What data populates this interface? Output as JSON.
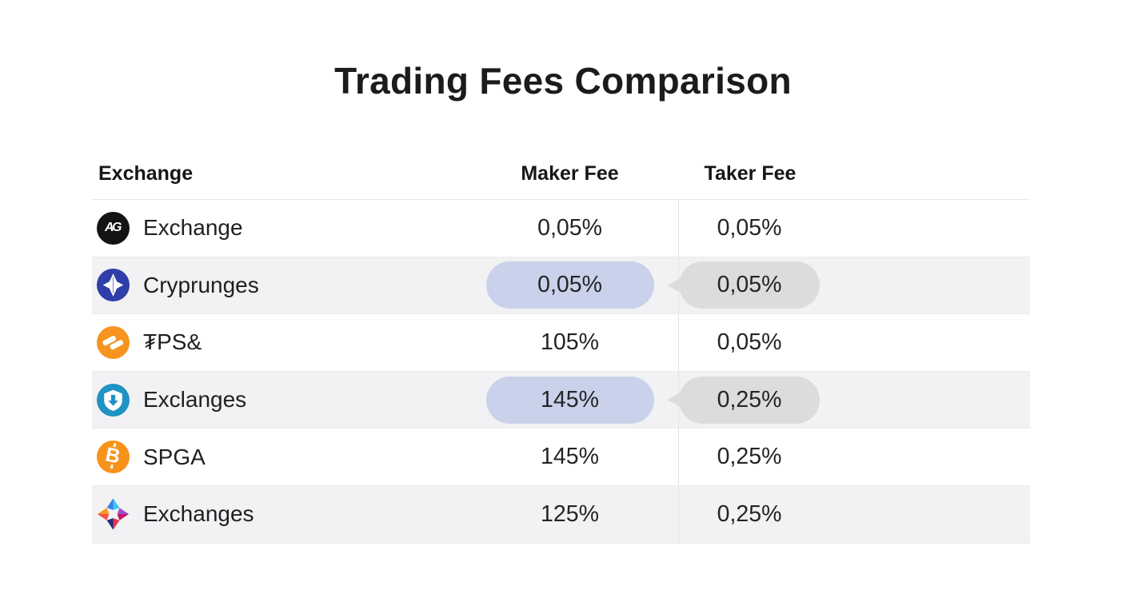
{
  "page_title": "Trading Fees Comparison",
  "colors": {
    "maker_highlight_pill": "#c9d2ea",
    "taker_highlight_bubble": "#dcdcde",
    "row_stripe": "#f2f2f4",
    "column_divider": "#e4e4e8",
    "coin_black": "#141416",
    "coin_indigo": "#2f3ea8",
    "coin_orange": "#f6941f",
    "coin_teal_blue": "#1f93c4",
    "coin_bitcoin_orange": "#f7931a"
  },
  "table": {
    "columns": [
      "Exchange",
      "Maker Fee",
      "Taker Fee"
    ],
    "rows": [
      {
        "exchange": "Exchange",
        "icon": "ag-monogram-coin-icon",
        "icon_text": "AG",
        "maker_fee": "0,05%",
        "taker_fee": "0,05%",
        "maker_highlight": false,
        "taker_bubble": false
      },
      {
        "exchange": "Cryprunges",
        "icon": "four-point-star-coin-icon",
        "icon_text": "",
        "maker_fee": "0,05%",
        "taker_fee": "0,05%",
        "maker_highlight": true,
        "taker_bubble": true
      },
      {
        "exchange": "₮PS&",
        "icon": "lightning-coin-icon",
        "icon_text": "",
        "maker_fee": "105%",
        "taker_fee": "0,05%",
        "maker_highlight": false,
        "taker_bubble": false
      },
      {
        "exchange": "Exclanges",
        "icon": "shield-coin-icon",
        "icon_text": "",
        "maker_fee": "145%",
        "taker_fee": "0,25%",
        "maker_highlight": true,
        "taker_bubble": true
      },
      {
        "exchange": "SPGA",
        "icon": "bitcoin-coin-icon",
        "icon_text": "₿",
        "maker_fee": "145%",
        "taker_fee": "0,25%",
        "maker_highlight": false,
        "taker_bubble": false
      },
      {
        "exchange": "Exchanges",
        "icon": "pinwheel-star-icon",
        "icon_text": "",
        "maker_fee": "125%",
        "taker_fee": "0,25%",
        "maker_highlight": false,
        "taker_bubble": false
      }
    ]
  },
  "chart_data": {
    "type": "table",
    "title": "Trading Fees Comparison",
    "columns": [
      "Exchange",
      "Maker Fee",
      "Taker Fee"
    ],
    "rows": [
      [
        "Exchange",
        "0,05%",
        "0,05%"
      ],
      [
        "Cryprunges",
        "0,05%",
        "0,05%"
      ],
      [
        "₮PS&",
        "105%",
        "0,05%"
      ],
      [
        "Exclanges",
        "145%",
        "0,25%"
      ],
      [
        "SPGA",
        "145%",
        "0,25%"
      ],
      [
        "Exchanges",
        "125%",
        "0,25%"
      ]
    ],
    "highlighted_rows": [
      "Cryprunges",
      "Exclanges"
    ],
    "layout": {
      "striped": true,
      "column_divider_after": "Maker Fee"
    }
  }
}
